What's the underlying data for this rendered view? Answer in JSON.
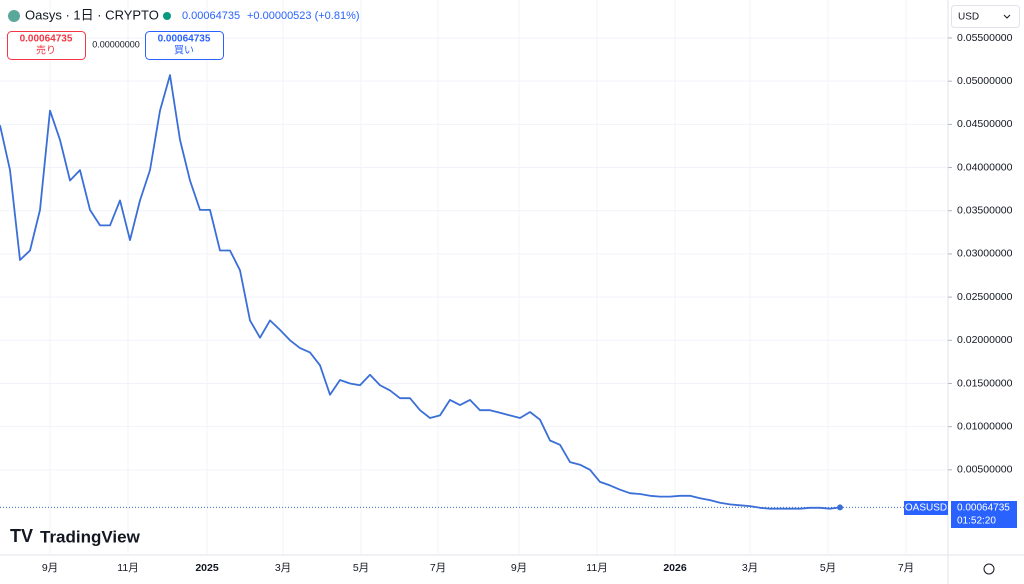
{
  "header": {
    "symbol": "Oasys · 1日 · CRYPTO",
    "price": "0.00064735",
    "change": "+0.00000523 (+0.81%)",
    "sell_price": "0.00064735",
    "sell_label": "売り",
    "spread": "0.00000000",
    "buy_price": "0.00064735",
    "buy_label": "買い",
    "currency": "USD",
    "price_tag_symbol": "OASUSD",
    "price_tag_value": "0.00064735",
    "countdown": "01:52:20",
    "logo": "TradingView"
  },
  "chart_data": {
    "type": "line",
    "color": "#3a6fd8",
    "grid": true,
    "xlim": [
      0,
      94.8
    ],
    "xticks": [
      {
        "value": 5.0,
        "label": "9月"
      },
      {
        "value": 12.8,
        "label": "11月"
      },
      {
        "value": 20.7,
        "label": "2025"
      },
      {
        "value": 28.3,
        "label": "3月"
      },
      {
        "value": 36.1,
        "label": "5月"
      },
      {
        "value": 43.8,
        "label": "7月"
      },
      {
        "value": 51.9,
        "label": "9月"
      },
      {
        "value": 59.7,
        "label": "11月"
      },
      {
        "value": 67.5,
        "label": "2026"
      },
      {
        "value": 75.0,
        "label": "3月"
      },
      {
        "value": 82.8,
        "label": "5月"
      },
      {
        "value": 90.6,
        "label": "7月"
      }
    ],
    "ylim": [
      -0.00486,
      0.0594
    ],
    "yticks": [
      {
        "value": 0.005,
        "label": "0.00500000"
      },
      {
        "value": 0.01,
        "label": "0.01000000"
      },
      {
        "value": 0.015,
        "label": "0.01500000"
      },
      {
        "value": 0.02,
        "label": "0.02000000"
      },
      {
        "value": 0.025,
        "label": "0.02500000"
      },
      {
        "value": 0.03,
        "label": "0.03000000"
      },
      {
        "value": 0.035,
        "label": "0.03500000"
      },
      {
        "value": 0.04,
        "label": "0.04000000"
      },
      {
        "value": 0.045,
        "label": "0.04500000"
      },
      {
        "value": 0.05,
        "label": "0.05000000"
      },
      {
        "value": 0.055,
        "label": "0.05500000"
      }
    ],
    "values": [
      0.0449,
      0.0397,
      0.0293,
      0.0304,
      0.0351,
      0.0466,
      0.0432,
      0.0385,
      0.0397,
      0.0351,
      0.0333,
      0.0333,
      0.0362,
      0.0316,
      0.0362,
      0.0397,
      0.0466,
      0.0507,
      0.0432,
      0.0385,
      0.0351,
      0.0351,
      0.0304,
      0.0304,
      0.0281,
      0.0223,
      0.0203,
      0.0223,
      0.0212,
      0.02,
      0.0191,
      0.0186,
      0.0171,
      0.0137,
      0.0154,
      0.015,
      0.0148,
      0.016,
      0.0148,
      0.0142,
      0.0133,
      0.0133,
      0.0119,
      0.011,
      0.0113,
      0.0131,
      0.0125,
      0.0131,
      0.0119,
      0.0119,
      0.0116,
      0.0113,
      0.011,
      0.0117,
      0.0108,
      0.0084,
      0.0079,
      0.0059,
      0.0056,
      0.005,
      0.0036,
      0.0032,
      0.0027,
      0.0023,
      0.0022,
      0.002,
      0.0019,
      0.0019,
      0.002,
      0.002,
      0.0017,
      0.0015,
      0.0012,
      0.001,
      0.0009,
      0.0008,
      0.0006,
      0.0005,
      0.0005,
      0.0005,
      0.0005,
      0.0006,
      0.0006,
      0.0005,
      0.00064735
    ]
  }
}
